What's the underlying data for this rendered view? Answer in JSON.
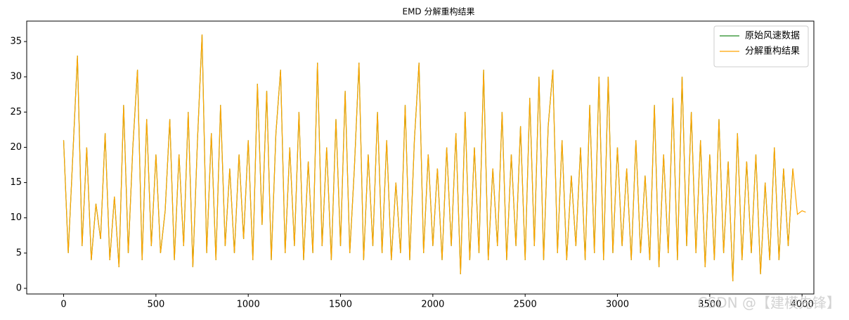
{
  "chart_data": {
    "type": "line",
    "title": "EMD 分解重构结果",
    "x": [
      0,
      25,
      50,
      75,
      100,
      125,
      150,
      175,
      200,
      225,
      250,
      275,
      300,
      325,
      350,
      375,
      400,
      425,
      450,
      475,
      500,
      525,
      550,
      575,
      600,
      625,
      650,
      675,
      700,
      725,
      750,
      775,
      800,
      825,
      850,
      875,
      900,
      925,
      950,
      975,
      1000,
      1025,
      1050,
      1075,
      1100,
      1125,
      1150,
      1175,
      1200,
      1225,
      1250,
      1275,
      1300,
      1325,
      1350,
      1375,
      1400,
      1425,
      1450,
      1475,
      1500,
      1525,
      1550,
      1575,
      1600,
      1625,
      1650,
      1675,
      1700,
      1725,
      1750,
      1775,
      1800,
      1825,
      1850,
      1875,
      1900,
      1925,
      1950,
      1975,
      2000,
      2025,
      2050,
      2075,
      2100,
      2125,
      2150,
      2175,
      2200,
      2225,
      2250,
      2275,
      2300,
      2325,
      2350,
      2375,
      2400,
      2425,
      2450,
      2475,
      2500,
      2525,
      2550,
      2575,
      2600,
      2625,
      2650,
      2675,
      2700,
      2725,
      2750,
      2775,
      2800,
      2825,
      2850,
      2875,
      2900,
      2925,
      2950,
      2975,
      3000,
      3025,
      3050,
      3075,
      3100,
      3125,
      3150,
      3175,
      3200,
      3225,
      3250,
      3275,
      3300,
      3325,
      3350,
      3375,
      3400,
      3425,
      3450,
      3475,
      3500,
      3525,
      3550,
      3575,
      3600,
      3625,
      3650,
      3675,
      3700,
      3725,
      3750,
      3775,
      3800,
      3825,
      3850,
      3875,
      3900,
      3925,
      3950,
      3975,
      4000,
      4020
    ],
    "series": [
      {
        "name": "原始风速数据",
        "color": "#228b22",
        "values": [
          21,
          5,
          19,
          33,
          6,
          20,
          4,
          12,
          7,
          22,
          4,
          13,
          3,
          26,
          5,
          20,
          31,
          4,
          24,
          6,
          19,
          5,
          11,
          24,
          4,
          19,
          6,
          25,
          3,
          21,
          36,
          5,
          22,
          4,
          26,
          6,
          17,
          5,
          19,
          7,
          21,
          4,
          29,
          9,
          28,
          4,
          22,
          31,
          5,
          20,
          6,
          25,
          4,
          18,
          5,
          32,
          6,
          20,
          4,
          24,
          6,
          28,
          5,
          17,
          32,
          4,
          19,
          6,
          25,
          5,
          21,
          4,
          15,
          5,
          26,
          4,
          21,
          32,
          5,
          19,
          6,
          17,
          4,
          20,
          6,
          22,
          2,
          25,
          4,
          20,
          5,
          31,
          4,
          17,
          6,
          25,
          4,
          19,
          6,
          23,
          4,
          27,
          6,
          30,
          4,
          23,
          31,
          5,
          21,
          4,
          16,
          6,
          20,
          4,
          26,
          5,
          30,
          4,
          30,
          5,
          20,
          6,
          17,
          4,
          21,
          5,
          16,
          4,
          26,
          3,
          19,
          5,
          27,
          4,
          30,
          6,
          25,
          5,
          21,
          3,
          19,
          4,
          24,
          5,
          18,
          1,
          22,
          4,
          18,
          5,
          19,
          2,
          15,
          4,
          20,
          4,
          17,
          6,
          17,
          null,
          null,
          null
        ]
      },
      {
        "name": "分解重构结果",
        "color": "#ffa500",
        "values": [
          21,
          5,
          19,
          33,
          6,
          20,
          4,
          12,
          7,
          22,
          4,
          13,
          3,
          26,
          5,
          20,
          31,
          4,
          24,
          6,
          19,
          5,
          11,
          24,
          4,
          19,
          6,
          25,
          3,
          21,
          36,
          5,
          22,
          4,
          26,
          6,
          17,
          5,
          19,
          7,
          21,
          4,
          29,
          9,
          28,
          4,
          22,
          31,
          5,
          20,
          6,
          25,
          4,
          18,
          5,
          32,
          6,
          20,
          4,
          24,
          6,
          28,
          5,
          17,
          32,
          4,
          19,
          6,
          25,
          5,
          21,
          4,
          15,
          5,
          26,
          4,
          21,
          32,
          5,
          19,
          6,
          17,
          4,
          20,
          6,
          22,
          2,
          25,
          4,
          20,
          5,
          31,
          4,
          17,
          6,
          25,
          4,
          19,
          6,
          23,
          4,
          27,
          6,
          30,
          4,
          23,
          31,
          5,
          21,
          4,
          16,
          6,
          20,
          4,
          26,
          5,
          30,
          4,
          30,
          5,
          20,
          6,
          17,
          4,
          21,
          5,
          16,
          4,
          26,
          3,
          19,
          5,
          27,
          4,
          30,
          6,
          25,
          5,
          21,
          3,
          19,
          4,
          24,
          5,
          18,
          1,
          22,
          4,
          18,
          5,
          19,
          2,
          15,
          4,
          20,
          4,
          17,
          6,
          17,
          10.5,
          11,
          10.8
        ]
      }
    ],
    "xlim": [
      -200,
      4064
    ],
    "ylim": [
      -0.8,
      37.9
    ],
    "xticks": [
      0,
      500,
      1000,
      1500,
      2000,
      2500,
      3000,
      3500,
      4000
    ],
    "yticks": [
      0,
      5,
      10,
      15,
      20,
      25,
      30,
      35
    ],
    "legend": "upper right",
    "watermark": "CSDN @【建模先锋】"
  }
}
